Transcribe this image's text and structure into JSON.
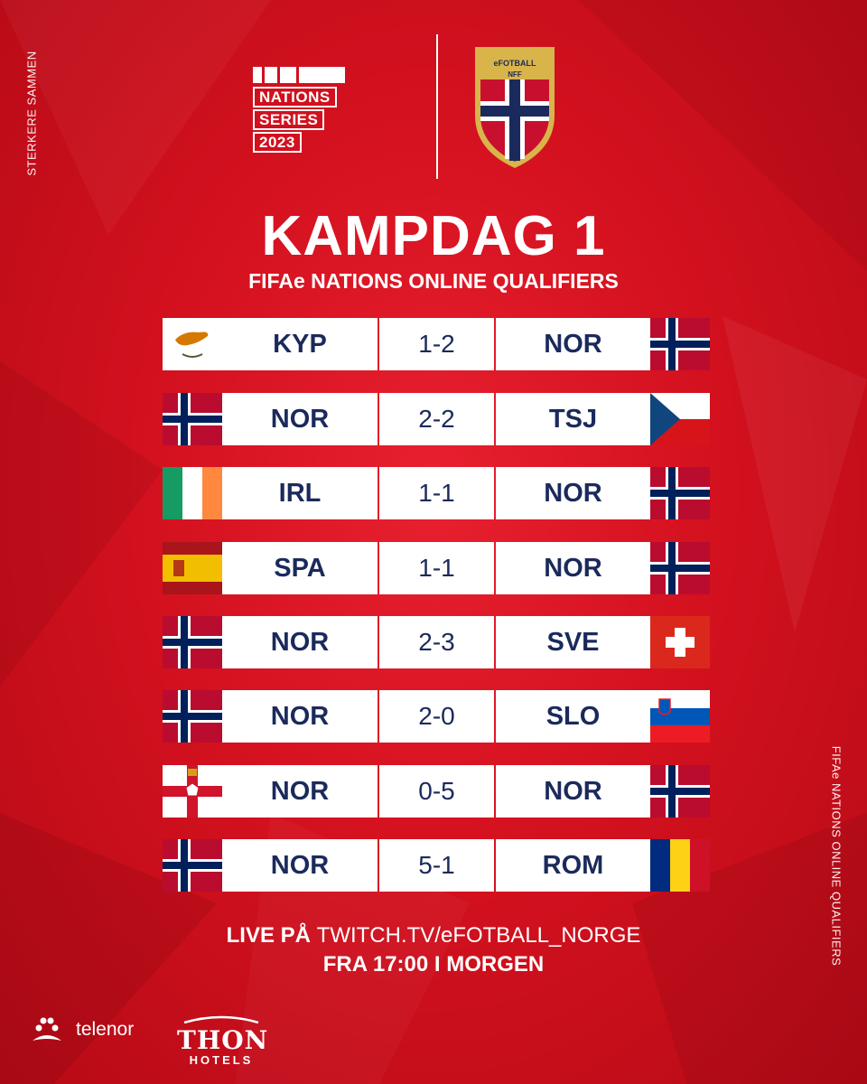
{
  "side_left_text": "STERKERE SAMMEN",
  "side_right_text": "FIFAe NATIONS ONLINE QUALIFIERS",
  "fifa_logo": {
    "line1": "FIFAe",
    "line2": "NATIONS",
    "line3": "SERIES",
    "line4": "2023"
  },
  "crest": {
    "text": "eFOTBALL",
    "letters": "NFF"
  },
  "title": "KAMPDAG 1",
  "subtitle": "FIFAe NATIONS ONLINE QUALIFIERS",
  "matches": [
    {
      "home": "KYP",
      "score": "1-2",
      "away": "NOR",
      "home_flag": "cyprus-flag",
      "away_flag": "norway-flag"
    },
    {
      "home": "NOR",
      "score": "2-2",
      "away": "TSJ",
      "home_flag": "norway-flag",
      "away_flag": "czech-flag"
    },
    {
      "home": "IRL",
      "score": "1-1",
      "away": "NOR",
      "home_flag": "ireland-flag",
      "away_flag": "norway-flag"
    },
    {
      "home": "SPA",
      "score": "1-1",
      "away": "NOR",
      "home_flag": "spain-flag",
      "away_flag": "norway-flag"
    },
    {
      "home": "NOR",
      "score": "2-3",
      "away": "SVE",
      "home_flag": "norway-flag",
      "away_flag": "switzerland-flag"
    },
    {
      "home": "NOR",
      "score": "2-0",
      "away": "SLO",
      "home_flag": "norway-flag",
      "away_flag": "slovenia-flag"
    },
    {
      "home": "NOR",
      "score": "0-5",
      "away": "NOR",
      "home_flag": "northern-ireland-flag",
      "away_flag": "norway-flag"
    },
    {
      "home": "NOR",
      "score": "5-1",
      "away": "ROM",
      "home_flag": "norway-flag",
      "away_flag": "romania-flag"
    }
  ],
  "live": {
    "prefix": "LIVE PÅ ",
    "url": "TWITCH.TV/eFOTBALL_NORGE"
  },
  "time_text": "FRA 17:00 I MORGEN",
  "sponsors": {
    "telenor": "telenor",
    "thon_main": "THON",
    "thon_sub": "HOTELS"
  },
  "colors": {
    "background": "#d4111f",
    "text_dark": "#1b2a5c",
    "white": "#ffffff"
  }
}
